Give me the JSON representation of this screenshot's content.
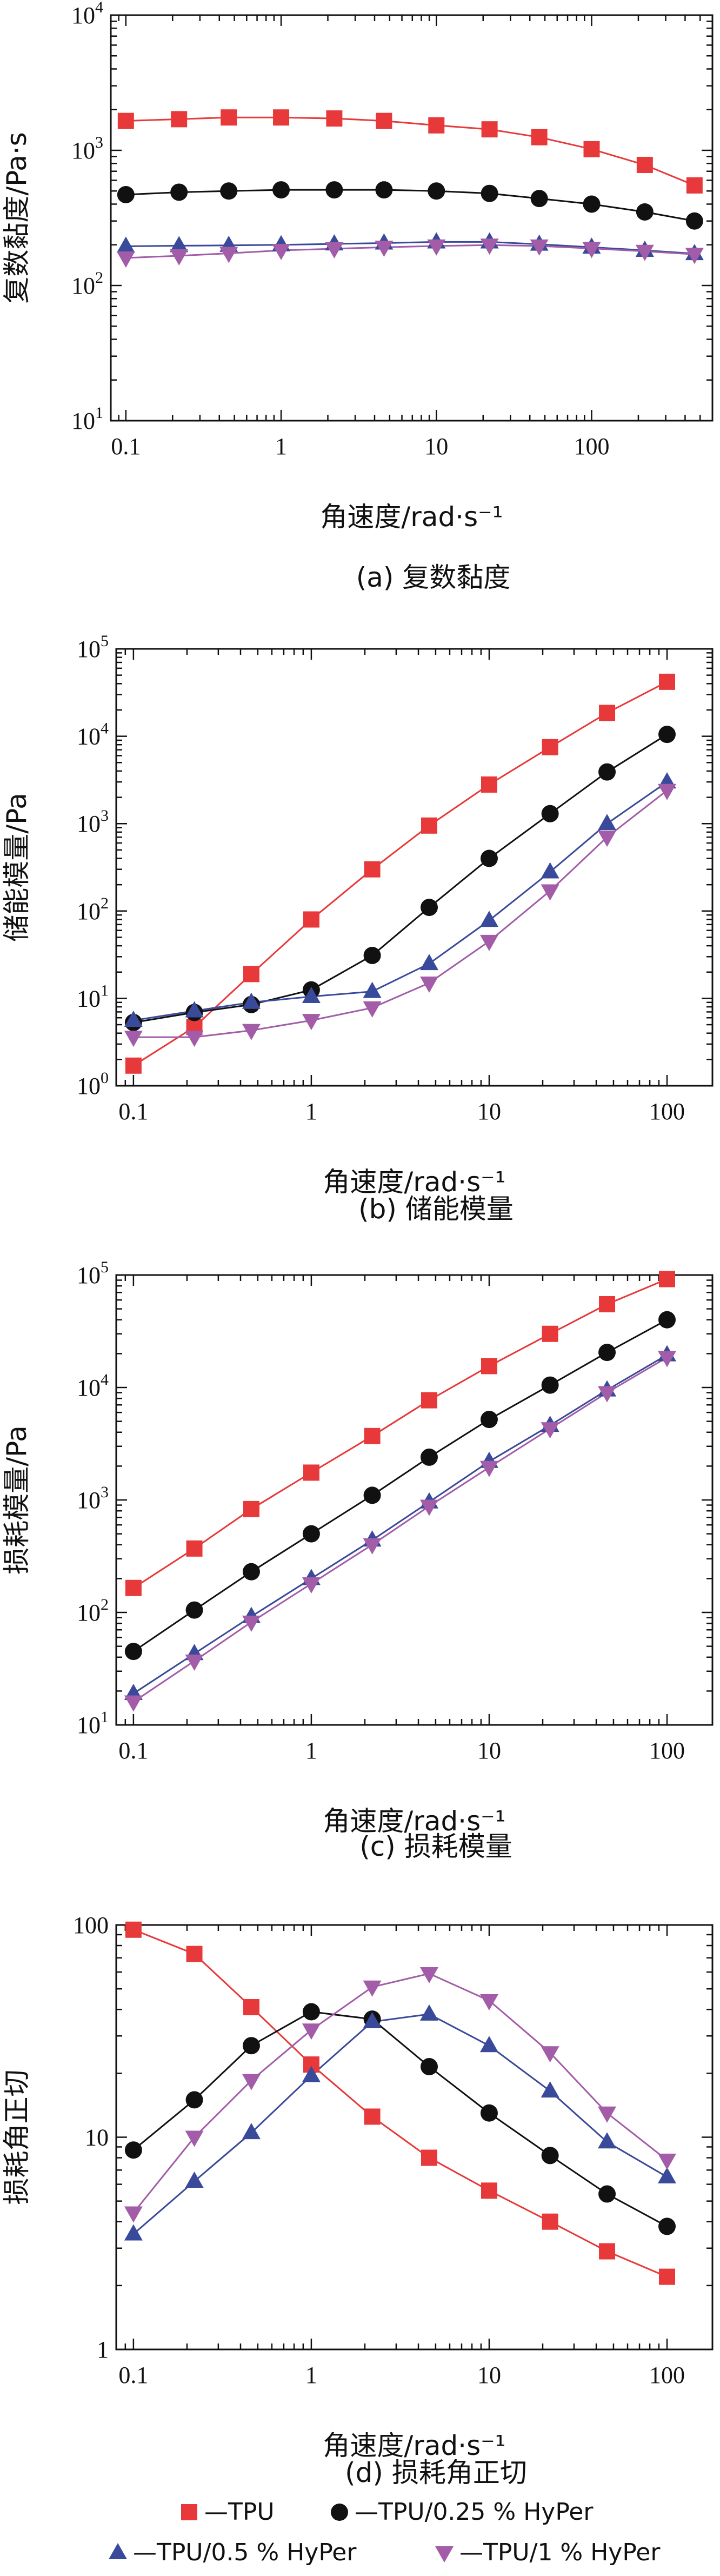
{
  "legend": [
    {
      "label": "—TPU",
      "color": "#e8393a",
      "marker": "square"
    },
    {
      "label": "—TPU/0.25 % HyPer",
      "color": "#111111",
      "marker": "circle"
    },
    {
      "label": "—TPU/0.5 % HyPer",
      "color": "#3a4a9a",
      "marker": "triangle-up"
    },
    {
      "label": "—TPU/1 % HyPer",
      "color": "#a25ca8",
      "marker": "triangle-down"
    }
  ],
  "chart_data": [
    {
      "type": "line",
      "caption": "(a) 复数黏度",
      "xlabel": "角速度/rad·s⁻¹",
      "ylabel": "复数黏度/Pa·s",
      "xscale": "log",
      "yscale": "log",
      "xlim": [
        0.08,
        600
      ],
      "ylim": [
        10,
        10000
      ],
      "xticks": [
        0.1,
        1,
        10,
        100
      ],
      "xtick_labels": [
        "0.1",
        "1",
        "10",
        "100"
      ],
      "yticks": [
        10,
        100,
        1000,
        10000
      ],
      "ytick_labels": [
        {
          "base": "10",
          "exp": "1"
        },
        {
          "base": "10",
          "exp": "2"
        },
        {
          "base": "10",
          "exp": "3"
        },
        {
          "base": "10",
          "exp": "4"
        }
      ],
      "x": [
        0.1,
        0.22,
        0.46,
        1,
        2.2,
        4.6,
        10,
        22,
        46,
        100,
        220,
        460
      ],
      "series": [
        {
          "name": "TPU",
          "values": [
            1650,
            1700,
            1750,
            1750,
            1720,
            1650,
            1530,
            1430,
            1250,
            1020,
            780,
            550
          ]
        },
        {
          "name": "TPU/0.25 % HyPer",
          "values": [
            470,
            490,
            500,
            510,
            510,
            510,
            500,
            480,
            440,
            400,
            350,
            300
          ]
        },
        {
          "name": "TPU/0.5 % HyPer",
          "values": [
            195,
            197,
            198,
            200,
            203,
            206,
            210,
            210,
            202,
            192,
            182,
            172
          ]
        },
        {
          "name": "TPU/1 % HyPer",
          "values": [
            160,
            166,
            173,
            182,
            187,
            192,
            196,
            199,
            196,
            188,
            179,
            170
          ]
        }
      ]
    },
    {
      "type": "line",
      "caption": "(b) 储能模量",
      "xlabel": "角速度/rad·s⁻¹",
      "ylabel": "储能模量/Pa",
      "xscale": "log",
      "yscale": "log",
      "xlim": [
        0.08,
        180
      ],
      "ylim": [
        1,
        100000
      ],
      "xticks": [
        0.1,
        1,
        10,
        100
      ],
      "xtick_labels": [
        "0.1",
        "1",
        "10",
        "100"
      ],
      "yticks": [
        1,
        10,
        100,
        1000,
        10000,
        100000
      ],
      "ytick_labels": [
        {
          "base": "10",
          "exp": "0"
        },
        {
          "base": "10",
          "exp": "1"
        },
        {
          "base": "10",
          "exp": "2"
        },
        {
          "base": "10",
          "exp": "3"
        },
        {
          "base": "10",
          "exp": "4"
        },
        {
          "base": "10",
          "exp": "5"
        }
      ],
      "x": [
        0.1,
        0.22,
        0.46,
        1,
        2.2,
        4.6,
        10,
        22,
        46,
        100
      ],
      "series": [
        {
          "name": "TPU",
          "values": [
            1.7,
            4.7,
            19,
            80,
            300,
            950,
            2800,
            7500,
            18500,
            42000
          ]
        },
        {
          "name": "TPU/0.25 % HyPer",
          "values": [
            5.3,
            6.9,
            8.5,
            12.5,
            31,
            110,
            400,
            1300,
            3900,
            10500
          ]
        },
        {
          "name": "TPU/0.5 % HyPer",
          "values": [
            5.6,
            7.2,
            9,
            10.5,
            12,
            25,
            78,
            280,
            1000,
            3000
          ]
        },
        {
          "name": "TPU/1 % HyPer",
          "values": [
            3.6,
            3.6,
            4.3,
            5.6,
            7.8,
            15,
            45,
            170,
            700,
            2400
          ]
        }
      ]
    },
    {
      "type": "line",
      "caption": "(c) 损耗模量",
      "xlabel": "角速度/rad·s⁻¹",
      "ylabel": "损耗模量/Pa",
      "xscale": "log",
      "yscale": "log",
      "xlim": [
        0.08,
        180
      ],
      "ylim": [
        10,
        100000
      ],
      "xticks": [
        0.1,
        1,
        10,
        100
      ],
      "xtick_labels": [
        "0.1",
        "1",
        "10",
        "100"
      ],
      "yticks": [
        10,
        100,
        1000,
        10000,
        100000
      ],
      "ytick_labels": [
        {
          "base": "10",
          "exp": "1"
        },
        {
          "base": "10",
          "exp": "2"
        },
        {
          "base": "10",
          "exp": "3"
        },
        {
          "base": "10",
          "exp": "4"
        },
        {
          "base": "10",
          "exp": "5"
        }
      ],
      "x": [
        0.1,
        0.22,
        0.46,
        1,
        2.2,
        4.6,
        10,
        22,
        46,
        100
      ],
      "series": [
        {
          "name": "TPU",
          "values": [
            165,
            370,
            830,
            1750,
            3700,
            7700,
            15500,
            30000,
            55000,
            92000
          ]
        },
        {
          "name": "TPU/0.25 % HyPer",
          "values": [
            45,
            105,
            230,
            500,
            1100,
            2400,
            5200,
            10500,
            20500,
            40000
          ]
        },
        {
          "name": "TPU/0.5 % HyPer",
          "values": [
            19,
            43,
            92,
            200,
            440,
            960,
            2200,
            4600,
            9500,
            19500
          ]
        },
        {
          "name": "TPU/1 % HyPer",
          "values": [
            16,
            37,
            82,
            180,
            400,
            880,
            1950,
            4300,
            9000,
            18500
          ]
        }
      ]
    },
    {
      "type": "line",
      "caption": "(d) 损耗角正切",
      "xlabel": "角速度/rad·s⁻¹",
      "ylabel": "损耗角正切",
      "xscale": "log",
      "yscale": "log",
      "xlim": [
        0.08,
        180
      ],
      "ylim": [
        1,
        100
      ],
      "xticks": [
        0.1,
        1,
        10,
        100
      ],
      "xtick_labels": [
        "0.1",
        "1",
        "10",
        "100"
      ],
      "yticks": [
        1,
        10,
        100
      ],
      "ytick_labels": [
        {
          "base": "1",
          "exp": ""
        },
        {
          "base": "10",
          "exp": ""
        },
        {
          "base": "100",
          "exp": ""
        }
      ],
      "x": [
        0.1,
        0.22,
        0.46,
        1,
        2.2,
        4.6,
        10,
        22,
        46,
        100
      ],
      "series": [
        {
          "name": "TPU",
          "values": [
            95,
            73,
            41,
            22,
            12.5,
            8,
            5.6,
            4,
            2.9,
            2.2
          ]
        },
        {
          "name": "TPU/0.25 % HyPer",
          "values": [
            8.7,
            15,
            27,
            39,
            36,
            21.5,
            13,
            8.2,
            5.4,
            3.8
          ]
        },
        {
          "name": "TPU/0.5 % HyPer",
          "values": [
            3.5,
            6.2,
            10.5,
            19.5,
            35,
            38,
            27,
            16.5,
            9.5,
            6.5
          ]
        },
        {
          "name": "TPU/1 % HyPer",
          "values": [
            4.4,
            10,
            18.5,
            32,
            51,
            59,
            44,
            25,
            13,
            7.8
          ]
        }
      ]
    }
  ]
}
